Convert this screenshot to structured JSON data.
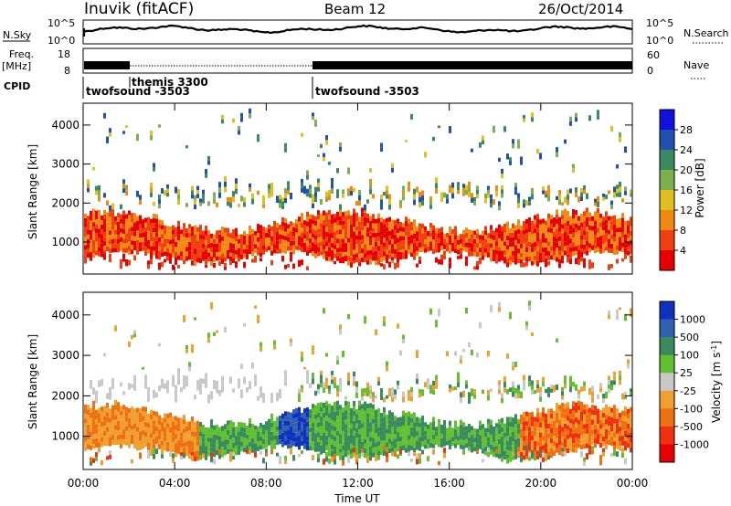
{
  "header": {
    "station": "Inuvik (fitACF)",
    "beam": "Beam 12",
    "date": "26/Oct/2014"
  },
  "summary": {
    "nsky_label": "N.Sky",
    "nsky_ticks": [
      "10^5",
      "10^0"
    ],
    "nsearch_label": "N.Search",
    "nsearch_ticks": [
      "10^5",
      "10^0"
    ],
    "freq_label": "Freq.",
    "freq_unit": "[MHz]",
    "freq_ticks": [
      "18",
      "8"
    ],
    "nave_label": "Nave",
    "nave_ticks": [
      "60",
      "0"
    ],
    "cpid_label": "CPID",
    "cpid_segments": [
      {
        "start_h": 0.0,
        "name": "twofsound -3503"
      },
      {
        "start_h": 1.9,
        "name": "themis 3300"
      },
      {
        "start_h": 10.0,
        "name": "twofsound -3503"
      }
    ]
  },
  "chart_data": [
    {
      "type": "heatmap",
      "name": "power",
      "ylabel": "Slant Range [km]",
      "ylim": [
        180,
        4560
      ],
      "yticks": [
        1000,
        2000,
        3000,
        4000
      ],
      "xlim": [
        0,
        24
      ],
      "xticks": [
        "00:00",
        "04:00",
        "08:00",
        "12:00",
        "16:00",
        "20:00",
        "00:00"
      ],
      "colorbar_label": "Power [dB]",
      "colorbar_ticks": [
        4,
        8,
        12,
        16,
        20,
        24,
        28
      ],
      "colorbar_range": [
        0,
        32
      ],
      "colors": [
        "#1010e0",
        "#2050b0",
        "#3a8a60",
        "#7ab050",
        "#e0c020",
        "#f08a10",
        "#f04010",
        "#e80000"
      ]
    },
    {
      "type": "heatmap",
      "name": "velocity",
      "ylabel": "Slant Range [km]",
      "ylim": [
        180,
        4560
      ],
      "yticks": [
        1000,
        2000,
        3000,
        4000
      ],
      "xlim": [
        0,
        24
      ],
      "xticks": [
        "00:00",
        "04:00",
        "08:00",
        "12:00",
        "16:00",
        "20:00",
        "00:00"
      ],
      "xlabel": "Time UT",
      "colorbar_label": "Velocity [m s^-1]",
      "colorbar_ticks": [
        "1000",
        "500",
        "100",
        "25",
        "-25",
        "-100",
        "-500",
        "-1000"
      ],
      "colors": [
        "#1030c0",
        "#3060b0",
        "#3a8a60",
        "#60c030",
        "#c8c8c8",
        "#f0a030",
        "#f07010",
        "#f03010",
        "#e80000"
      ]
    }
  ]
}
